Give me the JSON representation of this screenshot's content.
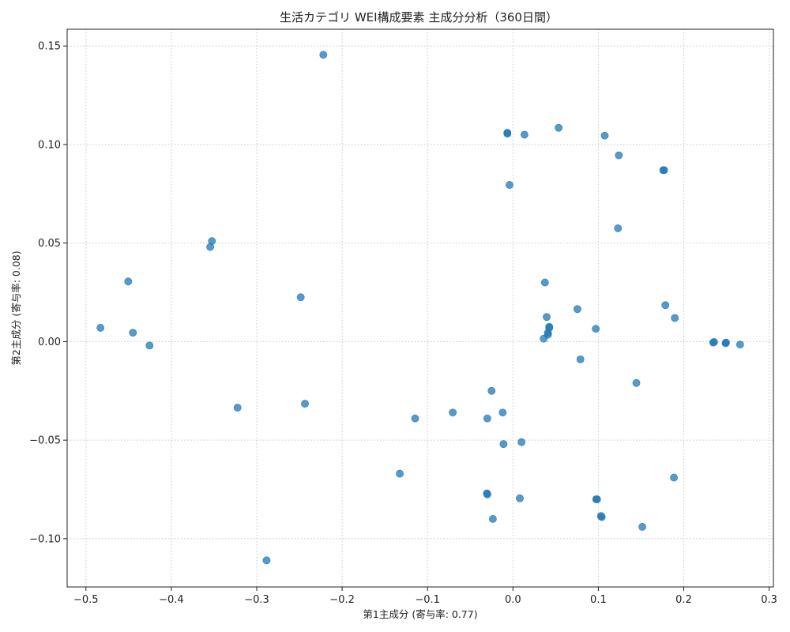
{
  "chart_data": {
    "type": "scatter",
    "title": "生活カテゴリ WEI構成要素 主成分分析（360日間）",
    "xlabel": "第1主成分 (寄与率: 0.77)",
    "ylabel": "第2主成分 (寄与率: 0.08)",
    "xlim": [
      -0.522,
      0.305
    ],
    "ylim": [
      -0.1245,
      0.1585
    ],
    "xticks": [
      -0.5,
      -0.4,
      -0.3,
      -0.2,
      -0.1,
      0.0,
      0.1,
      0.2,
      0.3
    ],
    "xtick_labels": [
      "−0.5",
      "−0.4",
      "−0.3",
      "−0.2",
      "−0.1",
      "0.0",
      "0.1",
      "0.2",
      "0.3"
    ],
    "yticks": [
      -0.1,
      -0.05,
      0.0,
      0.05,
      0.1,
      0.15
    ],
    "ytick_labels": [
      "−0.10",
      "−0.05",
      "0.00",
      "0.05",
      "0.10",
      "0.15"
    ],
    "grid": true,
    "marker_color": "#1f77b4",
    "marker_alpha": 0.75,
    "points": [
      {
        "x": -0.222,
        "y": 0.1455
      },
      {
        "x": -0.0065,
        "y": 0.106
      },
      {
        "x": -0.0065,
        "y": 0.1055
      },
      {
        "x": 0.0135,
        "y": 0.105
      },
      {
        "x": 0.0535,
        "y": 0.1085
      },
      {
        "x": 0.1075,
        "y": 0.1045
      },
      {
        "x": 0.124,
        "y": 0.0945
      },
      {
        "x": 0.176,
        "y": 0.087
      },
      {
        "x": 0.177,
        "y": 0.087
      },
      {
        "x": -0.004,
        "y": 0.0795
      },
      {
        "x": 0.123,
        "y": 0.0575
      },
      {
        "x": -0.3525,
        "y": 0.051
      },
      {
        "x": -0.3545,
        "y": 0.048
      },
      {
        "x": -0.4505,
        "y": 0.0305
      },
      {
        "x": -0.2485,
        "y": 0.0225
      },
      {
        "x": 0.0375,
        "y": 0.03
      },
      {
        "x": 0.0755,
        "y": 0.0165
      },
      {
        "x": 0.1785,
        "y": 0.0185
      },
      {
        "x": 0.1895,
        "y": 0.012
      },
      {
        "x": 0.0395,
        "y": 0.0125
      },
      {
        "x": 0.0425,
        "y": 0.007
      },
      {
        "x": 0.0425,
        "y": 0.0075
      },
      {
        "x": 0.041,
        "y": 0.0045
      },
      {
        "x": 0.041,
        "y": 0.0035
      },
      {
        "x": 0.036,
        "y": 0.0015
      },
      {
        "x": 0.097,
        "y": 0.0065
      },
      {
        "x": -0.483,
        "y": 0.007
      },
      {
        "x": -0.445,
        "y": 0.0045
      },
      {
        "x": -0.4255,
        "y": -0.002
      },
      {
        "x": 0.2345,
        "y": -0.0005
      },
      {
        "x": 0.2355,
        "y": -0.0002
      },
      {
        "x": 0.249,
        "y": -0.0008
      },
      {
        "x": 0.2495,
        "y": -0.0005
      },
      {
        "x": 0.266,
        "y": -0.0015
      },
      {
        "x": 0.079,
        "y": -0.009
      },
      {
        "x": 0.1445,
        "y": -0.021
      },
      {
        "x": -0.025,
        "y": -0.025
      },
      {
        "x": -0.3225,
        "y": -0.0335
      },
      {
        "x": -0.2435,
        "y": -0.0315
      },
      {
        "x": -0.1145,
        "y": -0.039
      },
      {
        "x": -0.0705,
        "y": -0.036
      },
      {
        "x": -0.03,
        "y": -0.039
      },
      {
        "x": -0.012,
        "y": -0.036
      },
      {
        "x": -0.011,
        "y": -0.052
      },
      {
        "x": 0.01,
        "y": -0.051
      },
      {
        "x": -0.1325,
        "y": -0.067
      },
      {
        "x": 0.1885,
        "y": -0.069
      },
      {
        "x": -0.0305,
        "y": -0.077
      },
      {
        "x": -0.03,
        "y": -0.0775
      },
      {
        "x": 0.008,
        "y": -0.0795
      },
      {
        "x": 0.0975,
        "y": -0.08
      },
      {
        "x": 0.0985,
        "y": -0.08
      },
      {
        "x": -0.0235,
        "y": -0.09
      },
      {
        "x": 0.103,
        "y": -0.0885
      },
      {
        "x": 0.104,
        "y": -0.089
      },
      {
        "x": 0.1515,
        "y": -0.094
      },
      {
        "x": -0.2885,
        "y": -0.111
      }
    ]
  }
}
